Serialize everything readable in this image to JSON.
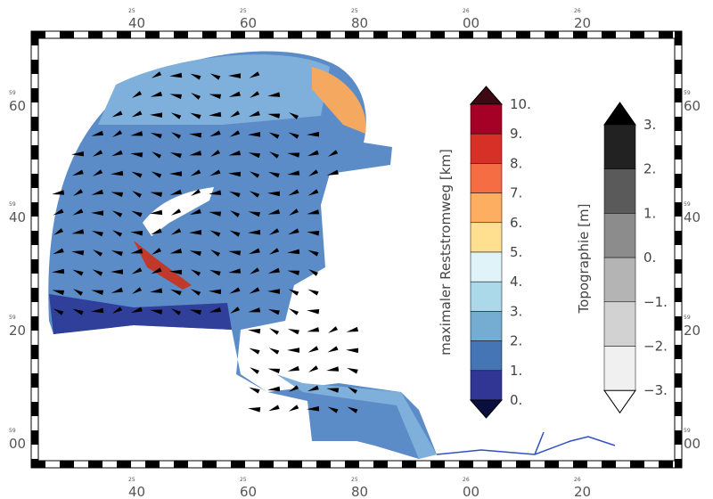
{
  "frame": {
    "lon_labels": [
      {
        "minor": "25",
        "major": "40"
      },
      {
        "minor": "25",
        "major": "60"
      },
      {
        "minor": "25",
        "major": "80"
      },
      {
        "minor": "26",
        "major": "00"
      },
      {
        "minor": "26",
        "major": "20"
      }
    ],
    "lat_labels": [
      {
        "minor": "59",
        "major": "60"
      },
      {
        "minor": "59",
        "major": "40"
      },
      {
        "minor": "59",
        "major": "20"
      },
      {
        "minor": "59",
        "major": "00"
      }
    ]
  },
  "colorbar_current": {
    "title": "maximaler Reststromweg [km]",
    "labels": [
      "10.",
      "9.",
      "8.",
      "7.",
      "6.",
      "5.",
      "4.",
      "3.",
      "2.",
      "1.",
      "0."
    ],
    "over_color": "#3d0a14",
    "under_color": "#0a0f3d",
    "colors": [
      "#a50026",
      "#d73027",
      "#f46d43",
      "#fdae61",
      "#fee090",
      "#e0f3f8",
      "#abd9e9",
      "#74add1",
      "#4575b4",
      "#313695"
    ]
  },
  "colorbar_topo": {
    "title": "Topographie [m]",
    "labels": [
      "3.",
      "2.",
      "1.",
      "0.",
      "−1.",
      "−2.",
      "−3."
    ],
    "over_color": "#000000",
    "under_color": "#ffffff",
    "colors": [
      "#222222",
      "#5a5a5a",
      "#8c8c8c",
      "#b4b4b4",
      "#d2d2d2",
      "#f0f0f0"
    ]
  }
}
